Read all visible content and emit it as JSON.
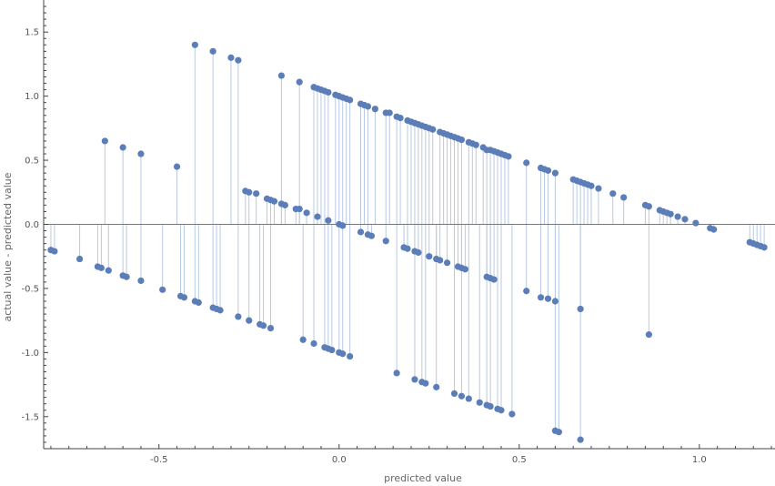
{
  "chart_data": {
    "type": "scatter",
    "title": "",
    "xlabel": "predicted value",
    "ylabel": "actual value - predicted value",
    "xlim": [
      -0.82,
      1.21
    ],
    "ylim": [
      -1.75,
      1.75
    ],
    "xticks": [
      -0.5,
      0.0,
      0.5,
      1.0
    ],
    "xtick_labels": [
      "-0.5",
      "0.0",
      "0.5",
      "1.0"
    ],
    "yticks": [
      -1.5,
      -1.0,
      -0.5,
      0.0,
      0.5,
      1.0,
      1.5
    ],
    "ytick_labels": [
      "-1.5",
      "-1.0",
      "-0.5",
      "0.0",
      "0.5",
      "1.0",
      "1.5"
    ],
    "grid": false,
    "stem_lines": true,
    "colors": {
      "point": "#5b7db8",
      "stem": "#b9c9e2",
      "axis": "#444444"
    },
    "points": [
      [
        -0.8,
        -0.2
      ],
      [
        -0.79,
        -0.21
      ],
      [
        -0.72,
        -0.27
      ],
      [
        -0.67,
        -0.33
      ],
      [
        -0.66,
        -0.34
      ],
      [
        -0.64,
        -0.36
      ],
      [
        -0.6,
        -0.4
      ],
      [
        -0.59,
        -0.41
      ],
      [
        -0.55,
        -0.44
      ],
      [
        -0.49,
        -0.51
      ],
      [
        -0.44,
        -0.56
      ],
      [
        -0.43,
        -0.57
      ],
      [
        -0.4,
        -0.6
      ],
      [
        -0.39,
        -0.61
      ],
      [
        -0.35,
        -0.65
      ],
      [
        -0.34,
        -0.66
      ],
      [
        -0.33,
        -0.67
      ],
      [
        -0.28,
        -0.72
      ],
      [
        -0.25,
        -0.75
      ],
      [
        -0.22,
        -0.78
      ],
      [
        -0.21,
        -0.79
      ],
      [
        -0.19,
        -0.81
      ],
      [
        -0.1,
        -0.9
      ],
      [
        -0.07,
        -0.93
      ],
      [
        -0.04,
        -0.96
      ],
      [
        -0.03,
        -0.97
      ],
      [
        -0.02,
        -0.98
      ],
      [
        0.0,
        -1.0
      ],
      [
        0.01,
        -1.01
      ],
      [
        0.03,
        -1.03
      ],
      [
        0.16,
        -1.16
      ],
      [
        0.21,
        -1.21
      ],
      [
        0.23,
        -1.23
      ],
      [
        0.24,
        -1.24
      ],
      [
        0.27,
        -1.27
      ],
      [
        0.32,
        -1.32
      ],
      [
        0.34,
        -1.34
      ],
      [
        0.36,
        -1.36
      ],
      [
        0.39,
        -1.39
      ],
      [
        0.41,
        -1.41
      ],
      [
        0.42,
        -1.42
      ],
      [
        0.44,
        -1.44
      ],
      [
        0.45,
        -1.45
      ],
      [
        0.48,
        -1.48
      ],
      [
        0.6,
        -1.61
      ],
      [
        0.61,
        -1.62
      ],
      [
        0.67,
        -1.68
      ],
      [
        -0.65,
        0.65
      ],
      [
        -0.6,
        0.6
      ],
      [
        -0.55,
        0.55
      ],
      [
        -0.45,
        0.45
      ],
      [
        -0.4,
        1.4
      ],
      [
        -0.35,
        1.35
      ],
      [
        -0.3,
        1.3
      ],
      [
        -0.28,
        1.28
      ],
      [
        -0.26,
        0.26
      ],
      [
        -0.25,
        0.25
      ],
      [
        -0.23,
        0.24
      ],
      [
        -0.2,
        0.2
      ],
      [
        -0.19,
        0.19
      ],
      [
        -0.18,
        0.18
      ],
      [
        -0.16,
        0.16
      ],
      [
        -0.16,
        1.16
      ],
      [
        -0.15,
        0.15
      ],
      [
        -0.12,
        0.12
      ],
      [
        -0.11,
        0.12
      ],
      [
        -0.11,
        1.11
      ],
      [
        -0.09,
        0.09
      ],
      [
        -0.07,
        1.07
      ],
      [
        -0.06,
        0.06
      ],
      [
        -0.06,
        1.06
      ],
      [
        -0.05,
        1.05
      ],
      [
        -0.04,
        1.04
      ],
      [
        -0.03,
        0.03
      ],
      [
        -0.03,
        1.03
      ],
      [
        -0.01,
        1.01
      ],
      [
        0.0,
        0.0
      ],
      [
        0.0,
        1.0
      ],
      [
        0.01,
        -0.01
      ],
      [
        0.01,
        0.99
      ],
      [
        0.02,
        0.98
      ],
      [
        0.03,
        0.97
      ],
      [
        0.06,
        -0.06
      ],
      [
        0.06,
        0.94
      ],
      [
        0.07,
        0.93
      ],
      [
        0.08,
        -0.08
      ],
      [
        0.08,
        0.92
      ],
      [
        0.09,
        -0.09
      ],
      [
        0.1,
        0.9
      ],
      [
        0.13,
        -0.13
      ],
      [
        0.13,
        0.87
      ],
      [
        0.14,
        0.87
      ],
      [
        0.16,
        0.84
      ],
      [
        0.17,
        0.83
      ],
      [
        0.18,
        -0.18
      ],
      [
        0.19,
        -0.19
      ],
      [
        0.19,
        0.81
      ],
      [
        0.2,
        0.8
      ],
      [
        0.21,
        -0.21
      ],
      [
        0.21,
        0.79
      ],
      [
        0.22,
        -0.22
      ],
      [
        0.22,
        0.78
      ],
      [
        0.23,
        0.77
      ],
      [
        0.24,
        0.76
      ],
      [
        0.25,
        -0.25
      ],
      [
        0.25,
        0.75
      ],
      [
        0.26,
        0.74
      ],
      [
        0.27,
        -0.27
      ],
      [
        0.28,
        -0.28
      ],
      [
        0.28,
        0.72
      ],
      [
        0.29,
        0.71
      ],
      [
        0.3,
        -0.3
      ],
      [
        0.3,
        0.7
      ],
      [
        0.31,
        0.69
      ],
      [
        0.32,
        0.68
      ],
      [
        0.33,
        -0.33
      ],
      [
        0.33,
        0.67
      ],
      [
        0.34,
        -0.34
      ],
      [
        0.34,
        0.66
      ],
      [
        0.35,
        -0.35
      ],
      [
        0.36,
        0.64
      ],
      [
        0.37,
        0.63
      ],
      [
        0.38,
        0.62
      ],
      [
        0.4,
        0.6
      ],
      [
        0.41,
        -0.41
      ],
      [
        0.41,
        0.58
      ],
      [
        0.42,
        -0.42
      ],
      [
        0.42,
        0.58
      ],
      [
        0.43,
        -0.43
      ],
      [
        0.43,
        0.57
      ],
      [
        0.44,
        0.56
      ],
      [
        0.45,
        0.55
      ],
      [
        0.46,
        0.54
      ],
      [
        0.47,
        0.53
      ],
      [
        0.52,
        0.48
      ],
      [
        0.52,
        -0.52
      ],
      [
        0.56,
        0.44
      ],
      [
        0.56,
        -0.57
      ],
      [
        0.57,
        0.43
      ],
      [
        0.58,
        0.42
      ],
      [
        0.58,
        -0.58
      ],
      [
        0.6,
        0.4
      ],
      [
        0.6,
        -0.6
      ],
      [
        0.65,
        0.35
      ],
      [
        0.66,
        0.34
      ],
      [
        0.67,
        0.33
      ],
      [
        0.67,
        -0.66
      ],
      [
        0.68,
        0.32
      ],
      [
        0.69,
        0.31
      ],
      [
        0.7,
        0.3
      ],
      [
        0.72,
        0.28
      ],
      [
        0.76,
        0.24
      ],
      [
        0.79,
        0.21
      ],
      [
        0.85,
        0.15
      ],
      [
        0.86,
        0.14
      ],
      [
        0.86,
        -0.86
      ],
      [
        0.89,
        0.11
      ],
      [
        0.9,
        0.1
      ],
      [
        0.91,
        0.09
      ],
      [
        0.92,
        0.08
      ],
      [
        0.94,
        0.06
      ],
      [
        0.96,
        0.04
      ],
      [
        0.99,
        0.01
      ],
      [
        1.03,
        -0.03
      ],
      [
        1.04,
        -0.04
      ],
      [
        1.14,
        -0.14
      ],
      [
        1.15,
        -0.15
      ],
      [
        1.16,
        -0.16
      ],
      [
        1.17,
        -0.17
      ],
      [
        1.18,
        -0.18
      ]
    ]
  }
}
